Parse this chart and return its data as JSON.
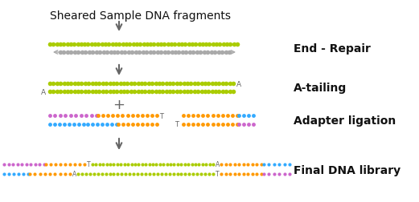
{
  "title": "Sheared Sample DNA fragments",
  "labels": [
    "End - Repair",
    "A-tailing",
    "Adapter ligation",
    "Final DNA library"
  ],
  "colors": {
    "yg": "#aacc00",
    "gray": "#aaaaaa",
    "purple": "#cc66cc",
    "orange": "#ff9900",
    "blue": "#33aaff",
    "dark_gray": "#666666",
    "black": "#111111"
  },
  "background": "#ffffff",
  "fig_w": 5.21,
  "fig_h": 2.53,
  "dpi": 100
}
